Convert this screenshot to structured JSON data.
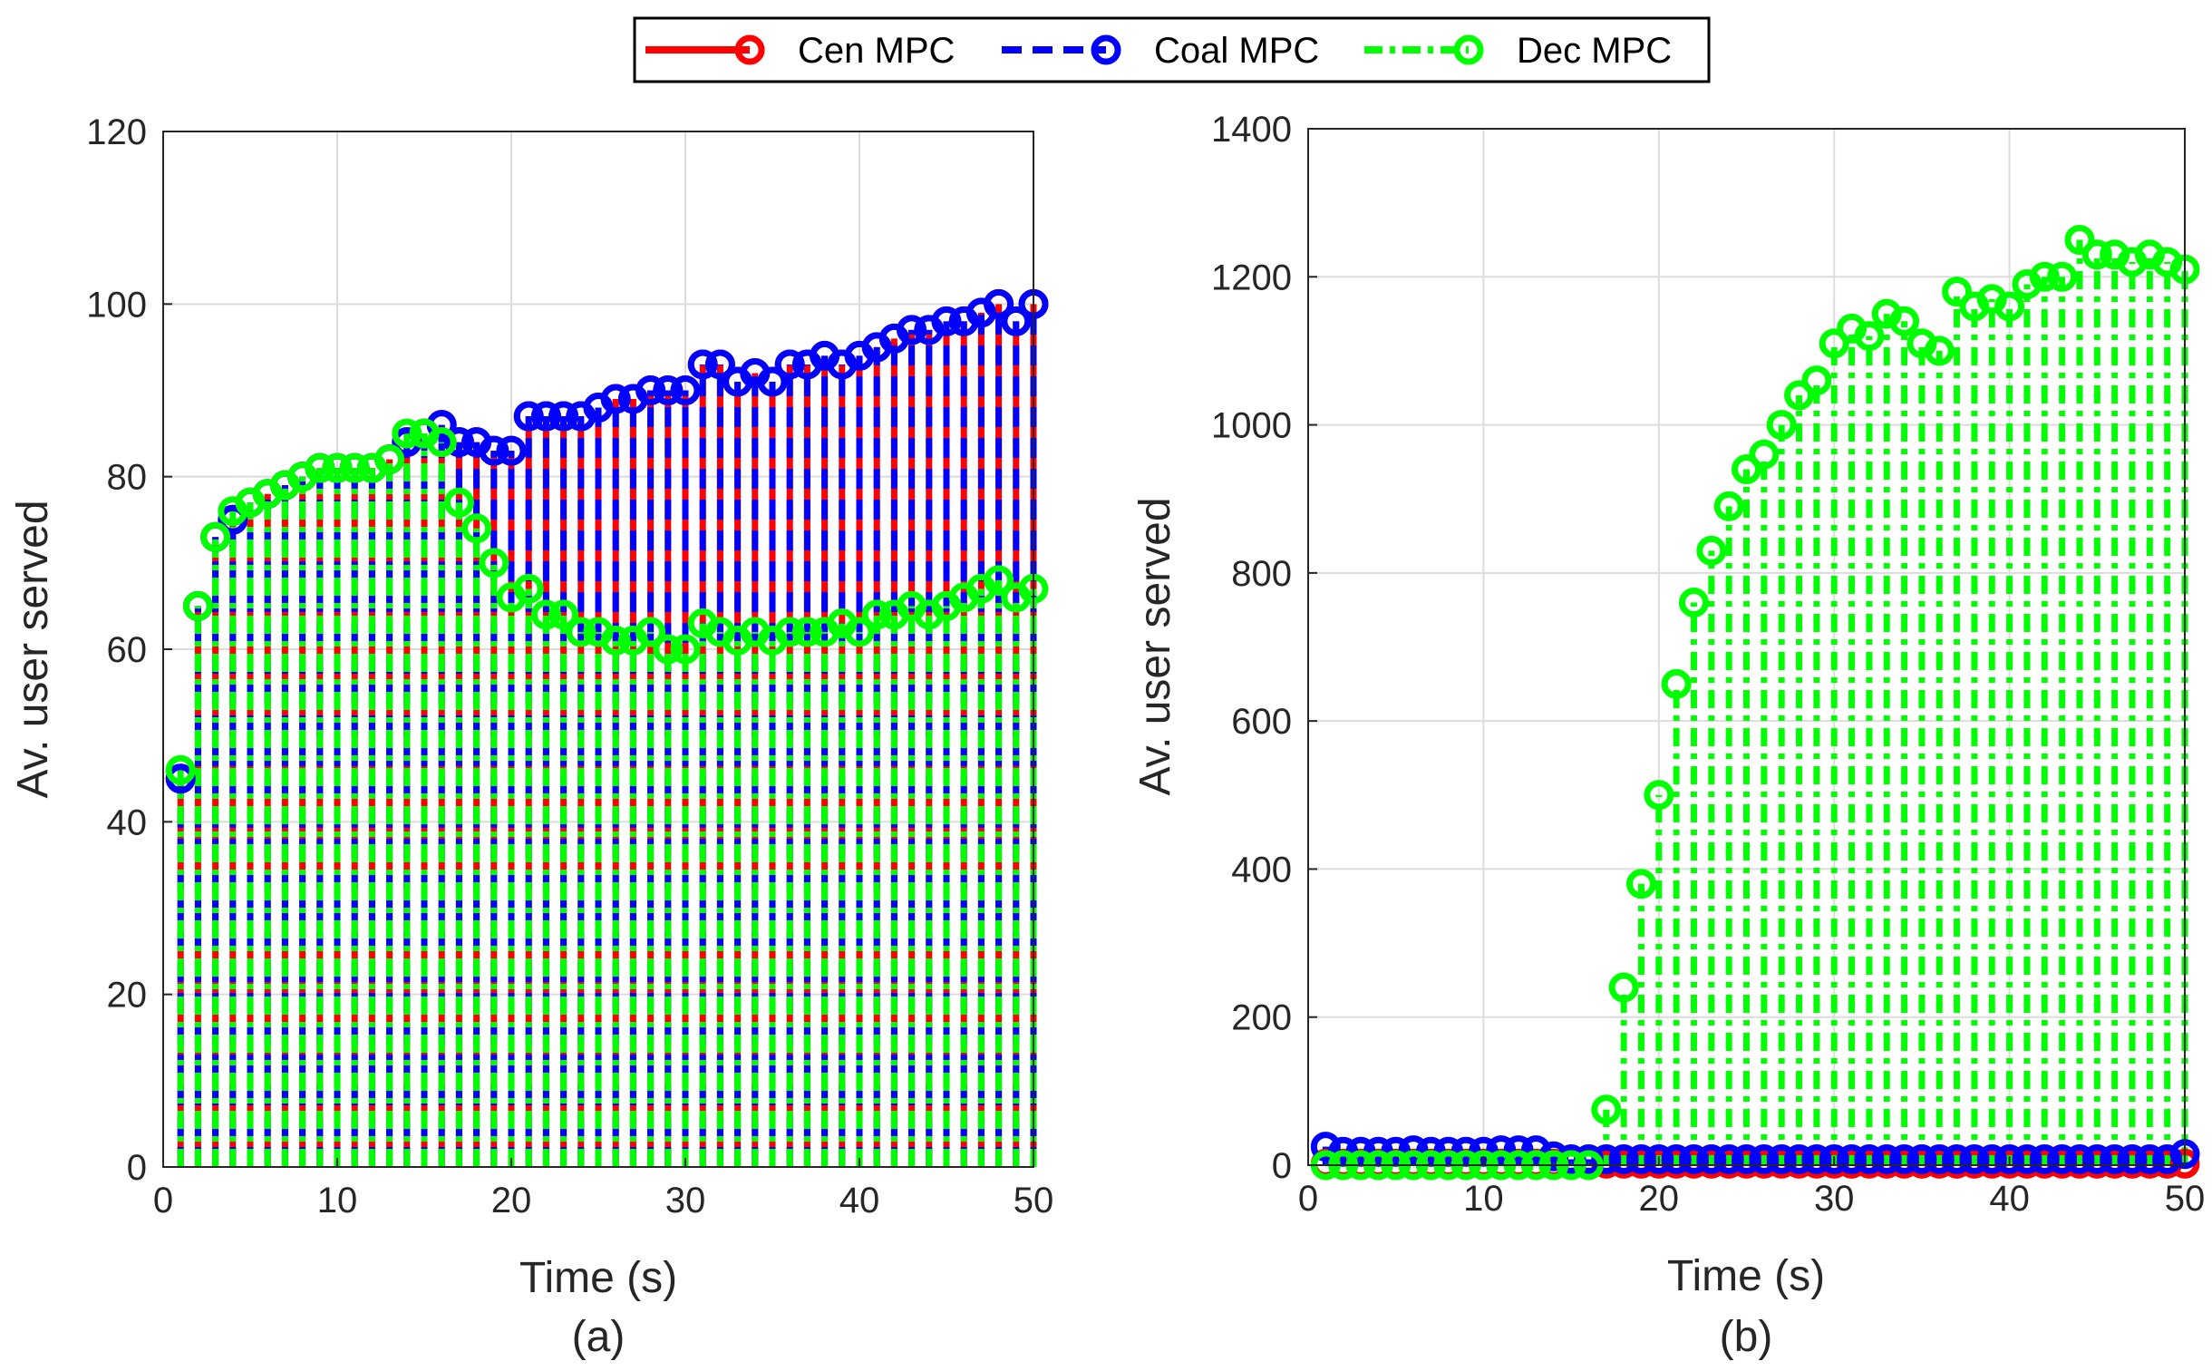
{
  "legend": {
    "entries": [
      {
        "name": "Cen MPC",
        "color": "#ff0000",
        "style": "solid"
      },
      {
        "name": "Coal MPC",
        "color": "#0000ff",
        "style": "dashed"
      },
      {
        "name": "Dec MPC",
        "color": "#00ff00",
        "style": "dashdot"
      }
    ],
    "placement": "top-center"
  },
  "chart_data": [
    {
      "type": "stem",
      "caption": "(a)",
      "xlabel": "Time (s)",
      "ylabel": "Av. user served",
      "xlim": [
        0,
        50
      ],
      "ylim": [
        0,
        120
      ],
      "xticks": [
        0,
        10,
        20,
        30,
        40,
        50
      ],
      "yticks": [
        0,
        20,
        40,
        60,
        80,
        100,
        120
      ],
      "grid": true,
      "x": [
        1,
        2,
        3,
        4,
        5,
        6,
        7,
        8,
        9,
        10,
        11,
        12,
        13,
        14,
        15,
        16,
        17,
        18,
        19,
        20,
        21,
        22,
        23,
        24,
        25,
        26,
        27,
        28,
        29,
        30,
        31,
        32,
        33,
        34,
        35,
        36,
        37,
        38,
        39,
        40,
        41,
        42,
        43,
        44,
        45,
        46,
        47,
        48,
        49,
        50
      ],
      "series": [
        {
          "name": "Cen MPC",
          "values": [
            45,
            65,
            73,
            75,
            77,
            78,
            79,
            80,
            81,
            81,
            81,
            81,
            82,
            84,
            85,
            86,
            84,
            84,
            83,
            83,
            87,
            87,
            87,
            87,
            88,
            89,
            89,
            90,
            90,
            90,
            93,
            93,
            91,
            92,
            91,
            93,
            93,
            94,
            93,
            94,
            95,
            96,
            97,
            97,
            98,
            98,
            99,
            100,
            98,
            100
          ]
        },
        {
          "name": "Coal MPC",
          "values": [
            45,
            65,
            73,
            75,
            77,
            78,
            79,
            80,
            81,
            81,
            81,
            81,
            82,
            84,
            85,
            86,
            84,
            84,
            83,
            83,
            87,
            87,
            87,
            87,
            88,
            89,
            89,
            90,
            90,
            90,
            93,
            93,
            91,
            92,
            91,
            93,
            93,
            94,
            93,
            94,
            95,
            96,
            97,
            97,
            98,
            98,
            99,
            100,
            98,
            100
          ]
        },
        {
          "name": "Dec MPC",
          "values": [
            46,
            65,
            73,
            76,
            77,
            78,
            79,
            80,
            81,
            81,
            81,
            81,
            82,
            85,
            85,
            84,
            77,
            74,
            70,
            66,
            67,
            64,
            64,
            62,
            62,
            61,
            61,
            62,
            60,
            60,
            63,
            62,
            61,
            62,
            61,
            62,
            62,
            62,
            63,
            62,
            64,
            64,
            65,
            64,
            65,
            66,
            67,
            68,
            66,
            67
          ]
        }
      ]
    },
    {
      "type": "stem",
      "caption": "(b)",
      "xlabel": "Time (s)",
      "ylabel": "Av. user served",
      "xlim": [
        0,
        50
      ],
      "ylim": [
        0,
        1400
      ],
      "xticks": [
        0,
        10,
        20,
        30,
        40,
        50
      ],
      "yticks": [
        0,
        200,
        400,
        600,
        800,
        1000,
        1200,
        1400
      ],
      "grid": true,
      "x": [
        1,
        2,
        3,
        4,
        5,
        6,
        7,
        8,
        9,
        10,
        11,
        12,
        13,
        14,
        15,
        16,
        17,
        18,
        19,
        20,
        21,
        22,
        23,
        24,
        25,
        26,
        27,
        28,
        29,
        30,
        31,
        32,
        33,
        34,
        35,
        36,
        37,
        38,
        39,
        40,
        41,
        42,
        43,
        44,
        45,
        46,
        47,
        48,
        49,
        50
      ],
      "series": [
        {
          "name": "Cen MPC",
          "values": [
            2,
            2,
            2,
            2,
            2,
            2,
            2,
            2,
            2,
            2,
            2,
            2,
            2,
            2,
            2,
            2,
            2,
            2,
            2,
            2,
            2,
            2,
            2,
            2,
            2,
            2,
            2,
            2,
            2,
            2,
            2,
            2,
            2,
            2,
            2,
            2,
            2,
            2,
            2,
            2,
            2,
            2,
            2,
            2,
            2,
            2,
            2,
            2,
            2,
            2
          ]
        },
        {
          "name": "Coal MPC",
          "values": [
            25,
            18,
            18,
            18,
            18,
            20,
            18,
            18,
            18,
            18,
            20,
            20,
            20,
            12,
            8,
            8,
            8,
            8,
            8,
            8,
            8,
            8,
            8,
            8,
            8,
            8,
            8,
            8,
            8,
            8,
            8,
            8,
            8,
            8,
            8,
            8,
            8,
            8,
            8,
            8,
            8,
            8,
            8,
            8,
            8,
            8,
            8,
            8,
            8,
            15
          ]
        },
        {
          "name": "Dec MPC",
          "values": [
            0,
            0,
            0,
            0,
            0,
            0,
            0,
            0,
            0,
            0,
            0,
            0,
            0,
            0,
            0,
            0,
            75,
            240,
            380,
            500,
            650,
            760,
            830,
            890,
            940,
            960,
            1000,
            1040,
            1060,
            1110,
            1130,
            1120,
            1150,
            1140,
            1110,
            1100,
            1180,
            1160,
            1170,
            1160,
            1190,
            1200,
            1200,
            1250,
            1230,
            1230,
            1220,
            1230,
            1220,
            1210
          ]
        }
      ]
    }
  ]
}
